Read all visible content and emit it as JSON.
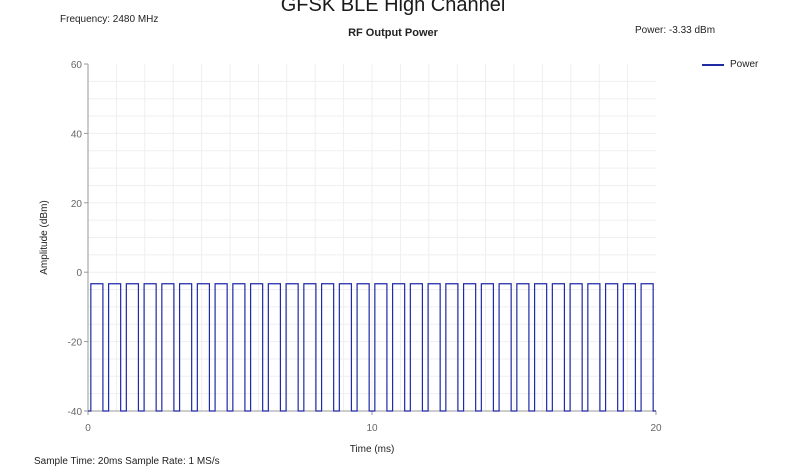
{
  "header": {
    "page_title": "GFSK BLE High Channel",
    "frequency": "Frequency: 2480 MHz",
    "power_readout": "Power: -3.33 dBm"
  },
  "footer": {
    "sample_info": "Sample Time: 20ms   Sample Rate: 1 MS/s"
  },
  "chart_data": {
    "type": "line",
    "title": "RF Output Power",
    "xlabel": "Time (ms)",
    "ylabel": "Amplitude (dBm)",
    "xlim": [
      0,
      20
    ],
    "ylim": [
      -40,
      60
    ],
    "xticks": [
      0,
      10,
      20
    ],
    "yticks": [
      60,
      40,
      20,
      0,
      -20,
      -40
    ],
    "grid": true,
    "legend": {
      "position": "top-right"
    },
    "colors": {
      "power": "#1f2aa6",
      "grid": "#efefef",
      "axis": "#9a9a9a"
    },
    "series": [
      {
        "name": "Power",
        "pulse": {
          "count": 32,
          "period_ms": 0.625,
          "on_ms": 0.425,
          "first_on_ms": 0.1,
          "high_dbm": -3.33,
          "low_dbm": -40
        }
      }
    ]
  }
}
